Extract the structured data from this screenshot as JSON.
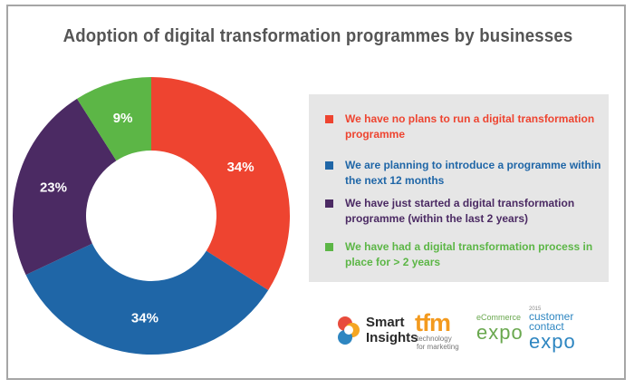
{
  "chart_data": {
    "type": "pie",
    "title": "Adoption of digital transformation programmes by businesses",
    "donut": true,
    "legend_position": "right",
    "slices": [
      {
        "label": "We have no plans to run a digital transformation programme",
        "value": 34,
        "display": "34%",
        "color": "#ee4430"
      },
      {
        "label": "We are planning to introduce a programme within the next 12 months",
        "value": 34,
        "display": "34%",
        "color": "#1f66a7"
      },
      {
        "label": "We have just started a digital transformation programme (within the last 2 years)",
        "value": 23,
        "display": "23%",
        "color": "#4b2a63"
      },
      {
        "label": "We have had a digital transformation process in place for > 2 years",
        "value": 9,
        "display": "9%",
        "color": "#5cb646"
      }
    ]
  },
  "legend": {
    "items": [
      {
        "text": "We have no plans to run a digital transformation programme",
        "color": "#ee4430"
      },
      {
        "text": "We are planning to introduce a programme within the next 12 months",
        "color": "#1f66a7"
      },
      {
        "text": "We have just started a digital transformation programme (within the last 2 years)",
        "color": "#4b2a63"
      },
      {
        "text": "We have had a digital transformation process in place for > 2 years",
        "color": "#5cb646"
      }
    ]
  },
  "logos": {
    "smart_insights": "Smart Insights",
    "tfm": "tfm",
    "tfm_sub": "technology for marketing",
    "ecommerce_small": "eCommerce",
    "ecommerce_expo": "expo",
    "cc_small": "2015",
    "cc_main": "customer contact",
    "cc_expo": "expo"
  }
}
